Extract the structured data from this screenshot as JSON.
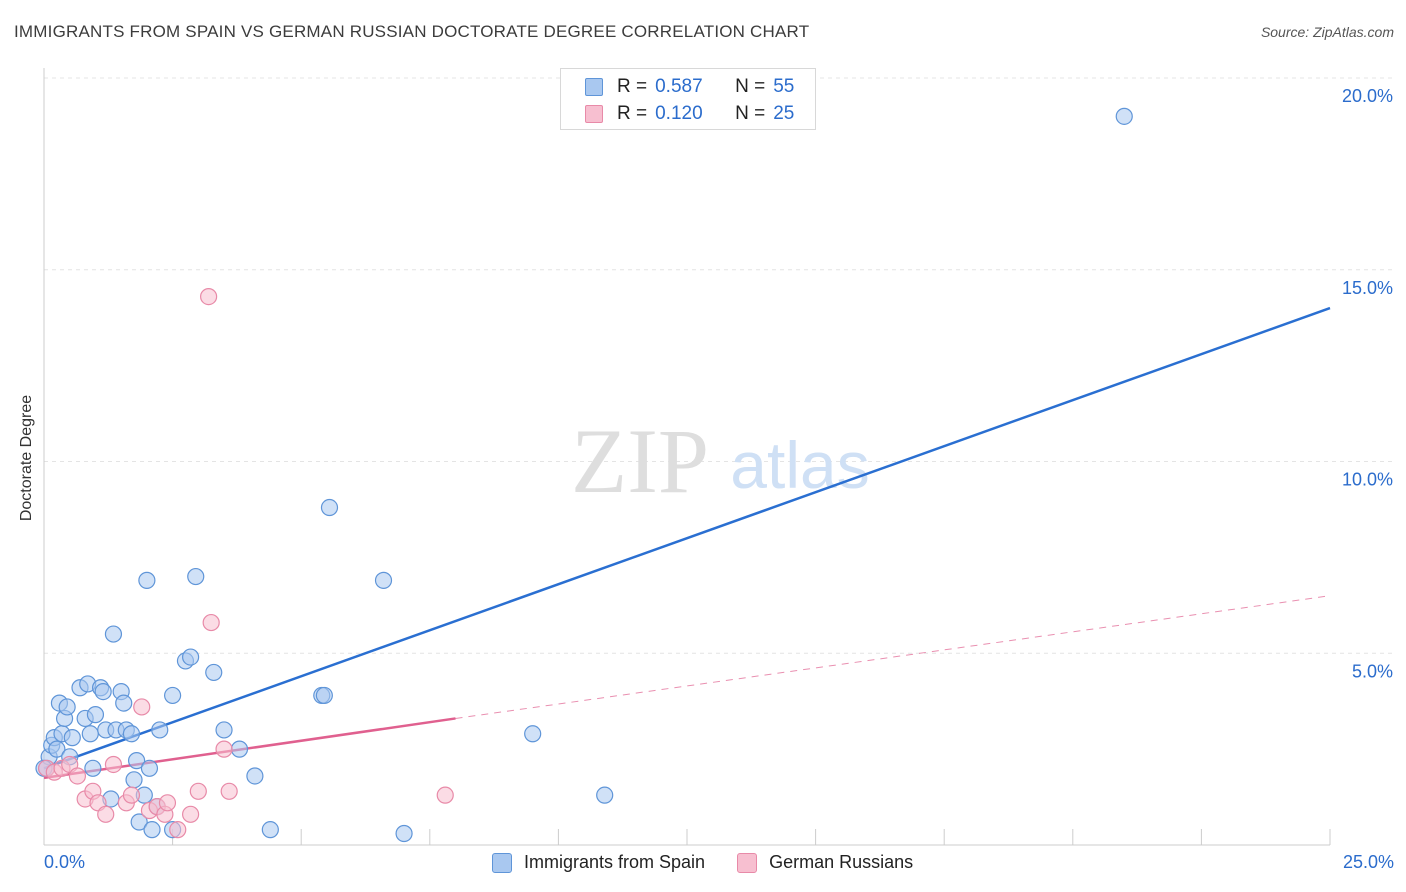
{
  "header": {
    "title": "IMMIGRANTS FROM SPAIN VS GERMAN RUSSIAN DOCTORATE DEGREE CORRELATION CHART",
    "source": "Source: ZipAtlas.com"
  },
  "watermark": {
    "zip": "ZIP",
    "atlas": "atlas"
  },
  "legend": {
    "r_label": "R =",
    "n_label": "N =",
    "rows": [
      {
        "r": "0.587",
        "n": "55"
      },
      {
        "r": "0.120",
        "n": "25"
      }
    ]
  },
  "colors": {
    "blue_fill": "#a9c8f0",
    "blue_stroke": "#5f95d8",
    "blue_line": "#2a6fd1",
    "pink_fill": "#f7bfd0",
    "pink_stroke": "#e88aa8",
    "pink_line": "#e0608f",
    "axis_text": "#2b6ccc",
    "grid": "#e4e4e4"
  },
  "chart_data": {
    "type": "scatter",
    "title": "IMMIGRANTS FROM SPAIN VS GERMAN RUSSIAN DOCTORATE DEGREE CORRELATION CHART",
    "xlabel": "",
    "ylabel": "Doctorate Degree",
    "xlim": [
      0,
      25
    ],
    "ylim": [
      0,
      20
    ],
    "x_tick_labels": [
      "0.0%",
      "25.0%"
    ],
    "y_ticks": [
      5,
      10,
      15,
      20
    ],
    "y_tick_labels": [
      "5.0%",
      "10.0%",
      "15.0%",
      "20.0%"
    ],
    "grid": true,
    "legend_position": "top-center",
    "series": [
      {
        "name": "Immigrants from Spain",
        "color": "blue",
        "points": [
          [
            0.05,
            2.0
          ],
          [
            0.1,
            2.3
          ],
          [
            0.15,
            2.6
          ],
          [
            0.2,
            2.8
          ],
          [
            0.25,
            2.5
          ],
          [
            0.3,
            3.7
          ],
          [
            0.35,
            2.9
          ],
          [
            0.4,
            3.3
          ],
          [
            0.45,
            3.6
          ],
          [
            0.5,
            2.3
          ],
          [
            0.55,
            2.8
          ],
          [
            0.7,
            4.1
          ],
          [
            0.8,
            3.3
          ],
          [
            0.85,
            4.2
          ],
          [
            0.9,
            2.9
          ],
          [
            0.95,
            2.0
          ],
          [
            1.0,
            3.4
          ],
          [
            1.1,
            4.1
          ],
          [
            1.15,
            4.0
          ],
          [
            1.2,
            3.0
          ],
          [
            1.3,
            1.2
          ],
          [
            1.35,
            5.5
          ],
          [
            1.4,
            3.0
          ],
          [
            1.5,
            4.0
          ],
          [
            1.55,
            3.7
          ],
          [
            1.6,
            3.0
          ],
          [
            1.7,
            2.9
          ],
          [
            1.75,
            1.7
          ],
          [
            1.8,
            2.2
          ],
          [
            1.85,
            0.6
          ],
          [
            1.95,
            1.3
          ],
          [
            2.0,
            6.9
          ],
          [
            2.05,
            2.0
          ],
          [
            2.1,
            0.4
          ],
          [
            2.2,
            1.0
          ],
          [
            2.25,
            3.0
          ],
          [
            2.5,
            0.4
          ],
          [
            2.5,
            3.9
          ],
          [
            2.75,
            4.8
          ],
          [
            2.85,
            4.9
          ],
          [
            2.95,
            7.0
          ],
          [
            3.3,
            4.5
          ],
          [
            3.5,
            3.0
          ],
          [
            3.8,
            2.5
          ],
          [
            4.1,
            1.8
          ],
          [
            4.4,
            0.4
          ],
          [
            5.4,
            3.9
          ],
          [
            5.45,
            3.9
          ],
          [
            5.55,
            8.8
          ],
          [
            6.6,
            6.9
          ],
          [
            7.0,
            0.3
          ],
          [
            9.5,
            2.9
          ],
          [
            10.9,
            1.3
          ],
          [
            21.0,
            19.0
          ],
          [
            0.0,
            2.0
          ]
        ]
      },
      {
        "name": "German Russians",
        "color": "pink",
        "points": [
          [
            0.05,
            2.0
          ],
          [
            0.2,
            1.9
          ],
          [
            0.35,
            2.0
          ],
          [
            0.5,
            2.1
          ],
          [
            0.65,
            1.8
          ],
          [
            0.8,
            1.2
          ],
          [
            0.95,
            1.4
          ],
          [
            1.05,
            1.1
          ],
          [
            1.2,
            0.8
          ],
          [
            1.35,
            2.1
          ],
          [
            1.6,
            1.1
          ],
          [
            1.7,
            1.3
          ],
          [
            1.9,
            3.6
          ],
          [
            2.05,
            0.9
          ],
          [
            2.2,
            1.0
          ],
          [
            2.35,
            0.8
          ],
          [
            2.4,
            1.1
          ],
          [
            2.6,
            0.4
          ],
          [
            2.85,
            0.8
          ],
          [
            3.0,
            1.4
          ],
          [
            3.2,
            14.3
          ],
          [
            3.25,
            5.8
          ],
          [
            3.5,
            2.5
          ],
          [
            3.6,
            1.4
          ],
          [
            7.8,
            1.3
          ]
        ]
      }
    ],
    "trendlines": [
      {
        "series": "Immigrants from Spain",
        "x": [
          0,
          25
        ],
        "y": [
          2.0,
          14.0
        ],
        "style": "solid"
      },
      {
        "series": "German Russians",
        "x": [
          0,
          8.0
        ],
        "y": [
          1.75,
          3.3
        ],
        "style": "solid"
      },
      {
        "series": "German Russians",
        "x": [
          8.0,
          25
        ],
        "y": [
          3.3,
          6.5
        ],
        "style": "dashed"
      }
    ]
  }
}
